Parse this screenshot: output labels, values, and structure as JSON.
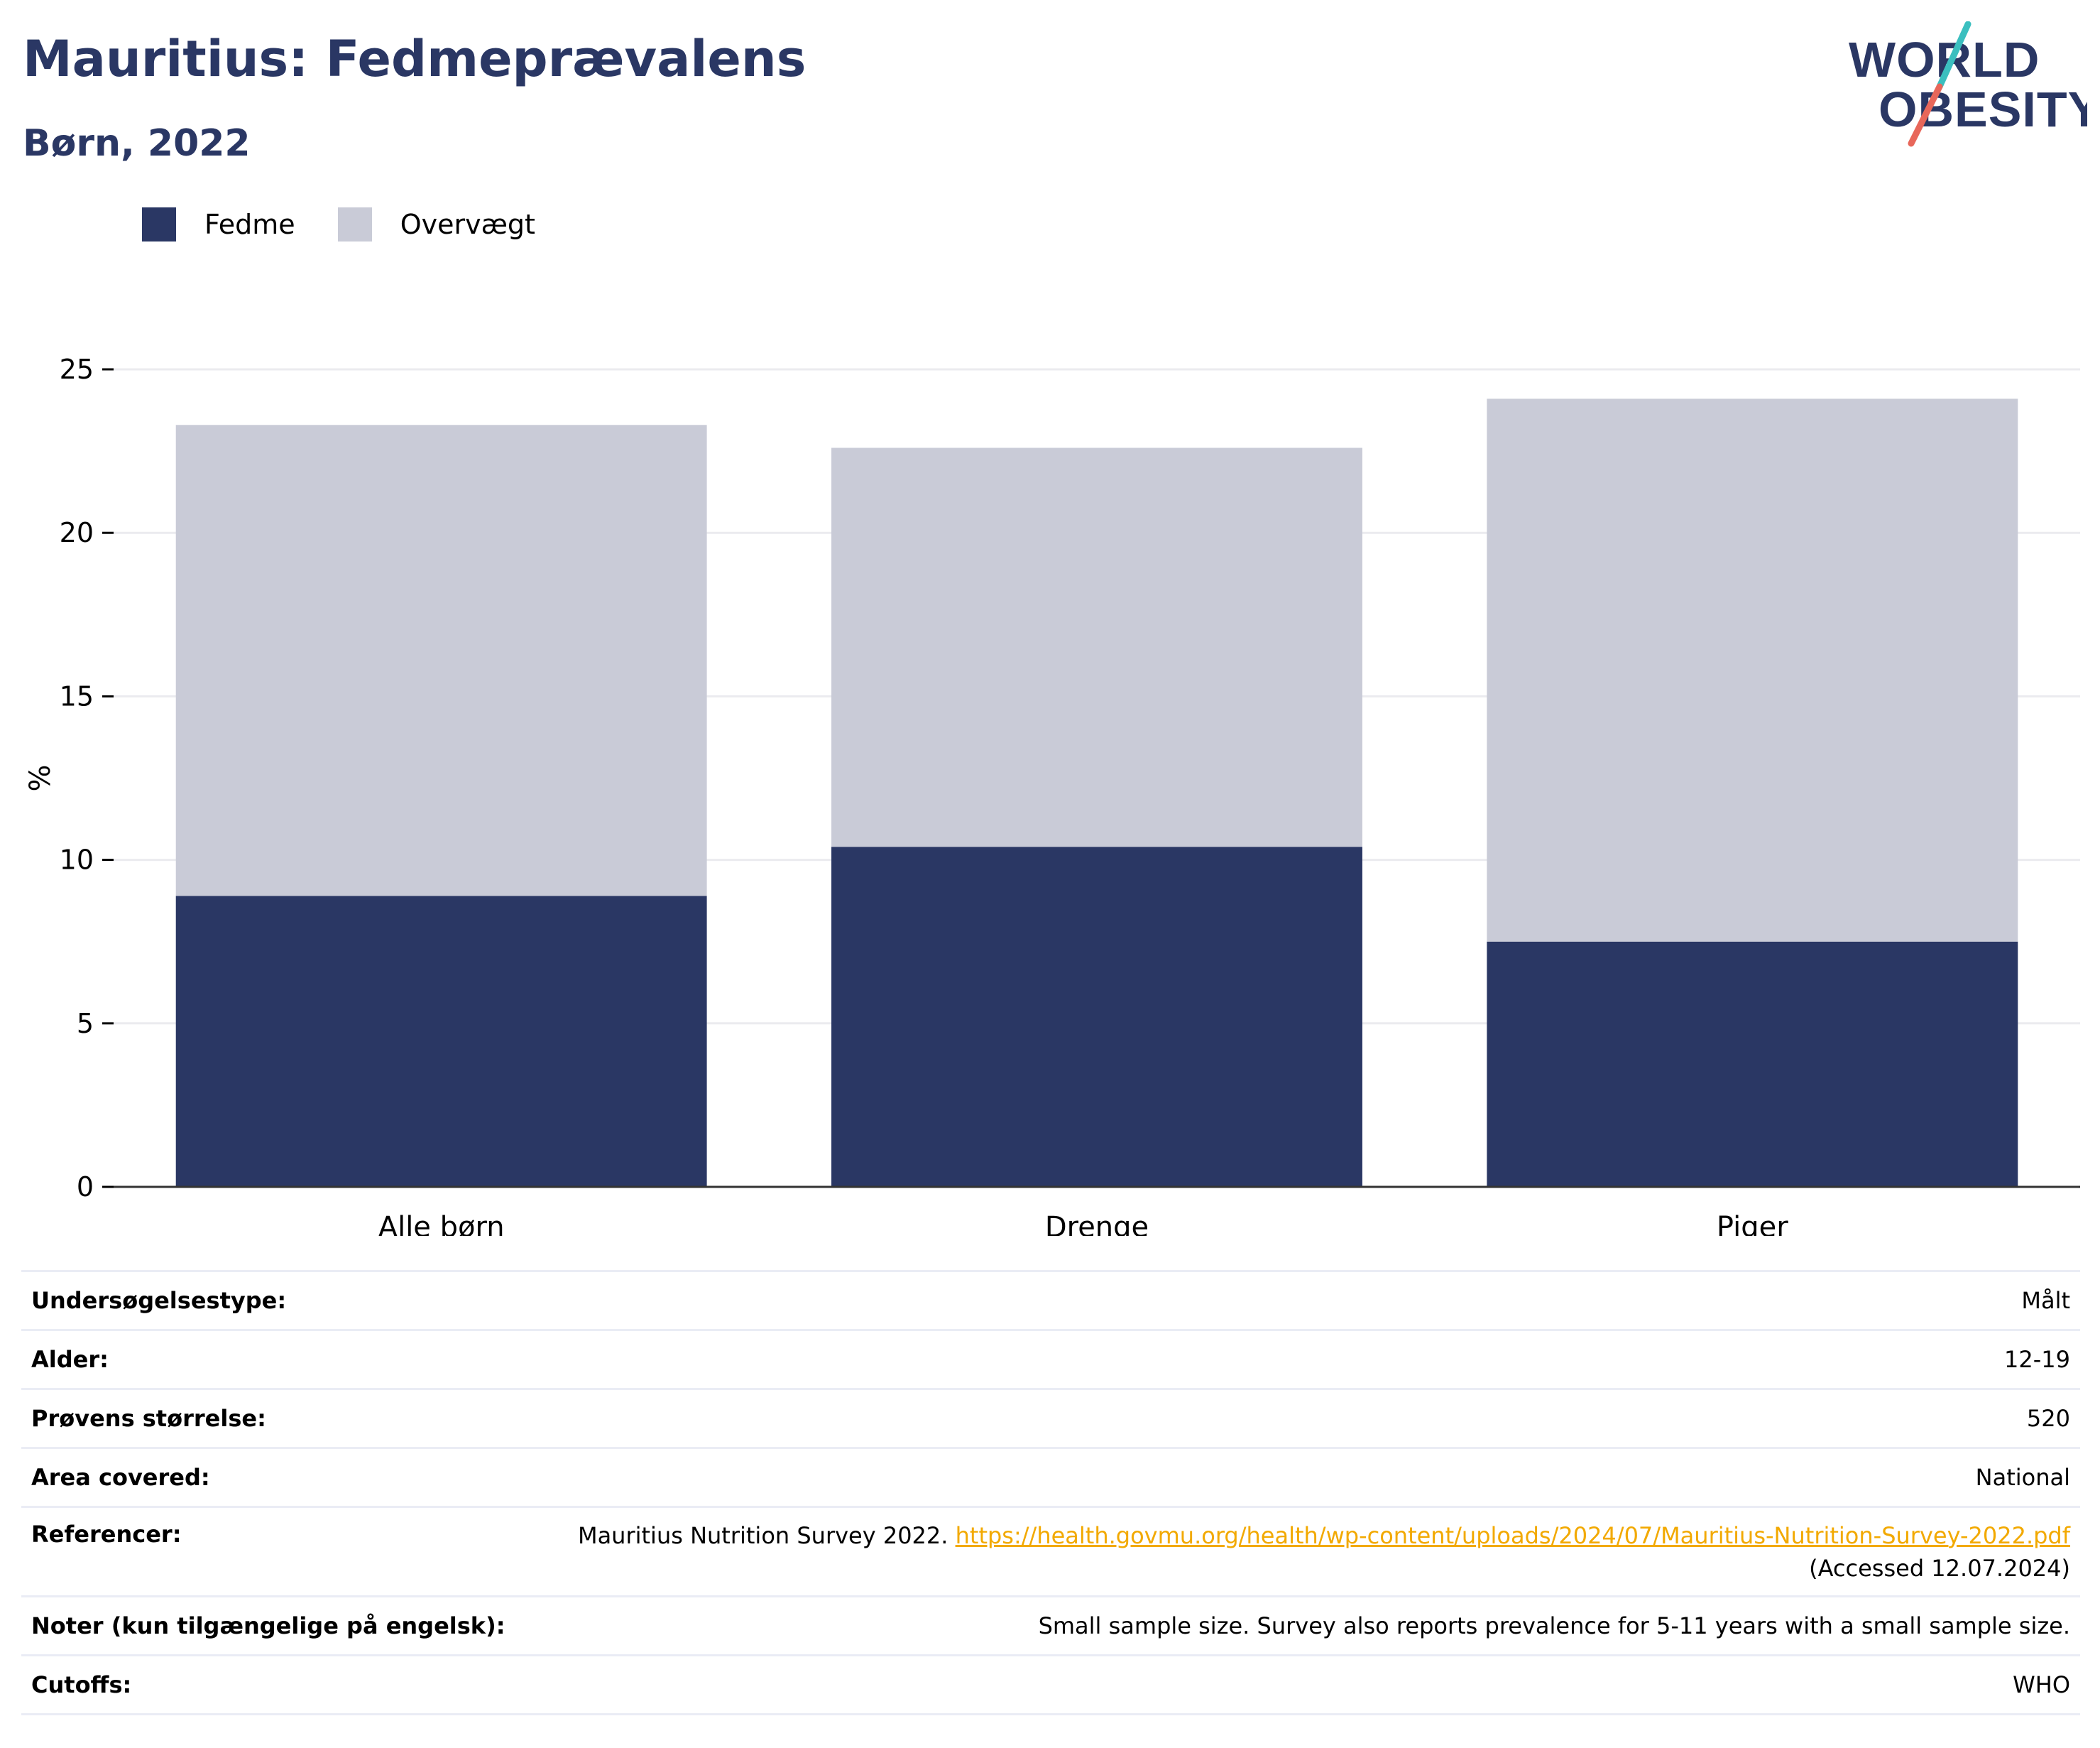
{
  "title": "Mauritius: Fedmeprævalens",
  "subtitle": "Børn, 2022",
  "logo": {
    "line1": "WORLD",
    "line2": "OBESITY"
  },
  "colors": {
    "fedme": "#2a3764",
    "overvaegt": "#c9cbd7",
    "accent_teal": "#3bbfbf",
    "accent_red": "#e8675a"
  },
  "legend": [
    {
      "label": "Fedme",
      "color": "#2a3764"
    },
    {
      "label": "Overvægt",
      "color": "#c9cbd7"
    }
  ],
  "chart_data": {
    "type": "bar",
    "stacked": true,
    "categories": [
      "Alle børn",
      "Drenge",
      "Piger"
    ],
    "series": [
      {
        "name": "Fedme",
        "values": [
          8.9,
          10.4,
          7.5
        ]
      },
      {
        "name": "Overvægt",
        "values": [
          14.4,
          12.2,
          16.6
        ]
      }
    ],
    "ylabel": "%",
    "ylim": [
      0,
      25
    ],
    "yticks": [
      0,
      5,
      10,
      15,
      20,
      25
    ],
    "grid": true,
    "legend_position": "top-left"
  },
  "info": {
    "rows": [
      {
        "key": "Undersøgelsestype:",
        "value": "Målt"
      },
      {
        "key": "Alder:",
        "value": "12-19"
      },
      {
        "key": "Prøvens størrelse:",
        "value": "520"
      },
      {
        "key": "Area covered:",
        "value": "National"
      },
      {
        "key": "Noter (kun tilgængelige på engelsk):",
        "value": "Small sample size. Survey also reports prevalence for 5-11 years with a small sample size."
      },
      {
        "key": "Cutoffs:",
        "value": "WHO"
      }
    ],
    "reference": {
      "key": "Referencer:",
      "text": "Mauritius Nutrition Survey 2022.",
      "link": "https://health.govmu.org/health/wp-content/uploads/2024/07/Mauritius-Nutrition-Survey-2022.pdf",
      "accessed": "(Accessed 12.07.2024)"
    }
  }
}
